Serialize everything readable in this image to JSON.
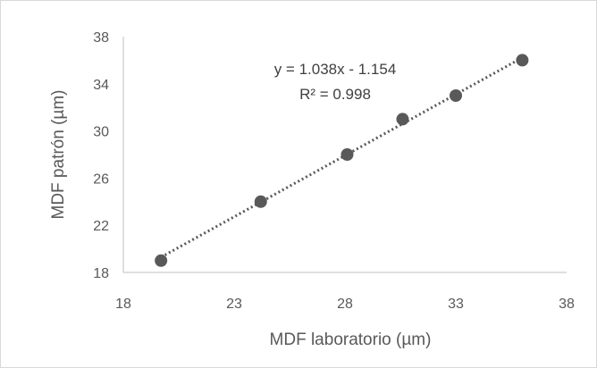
{
  "chart_data": {
    "type": "scatter",
    "title": "",
    "xlabel": "MDF laboratorio (µm)",
    "ylabel": "MDF patrón (µm)",
    "xlim": [
      18,
      38
    ],
    "ylim": [
      18,
      38
    ],
    "xticks": [
      "18",
      "23",
      "28",
      "33",
      "38"
    ],
    "yticks": [
      "18",
      "22",
      "26",
      "30",
      "34",
      "38"
    ],
    "grid": false,
    "legend": "none",
    "series": [
      {
        "points": [
          {
            "x": 19.7,
            "y": 19.0
          },
          {
            "x": 24.2,
            "y": 24.0
          },
          {
            "x": 28.1,
            "y": 28.0
          },
          {
            "x": 30.6,
            "y": 31.0
          },
          {
            "x": 33.0,
            "y": 33.0
          },
          {
            "x": 36.0,
            "y": 36.0
          }
        ],
        "color": "#595959"
      }
    ],
    "trendline": {
      "type": "linear",
      "slope": 1.038,
      "intercept": -1.154,
      "x_range": [
        19.7,
        36.0
      ],
      "color": "#595959",
      "style": "dotted"
    },
    "annotations": [
      "y = 1.038x - 1.154",
      "R² = 0.998"
    ]
  }
}
